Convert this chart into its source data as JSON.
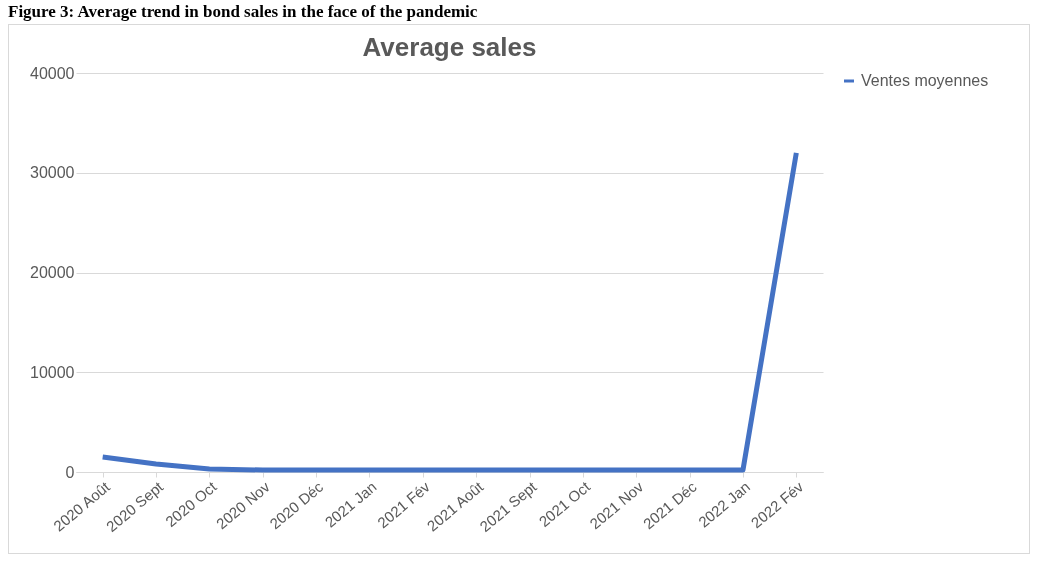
{
  "chart_data": {
    "type": "line",
    "title": "Average sales",
    "annotations": [
      "Figure 3: Average trend in bond sales in the face of the pandemic"
    ],
    "categories": [
      "2020 Août",
      "2020 Sept",
      "2020 Oct",
      "2020 Nov",
      "2020 Déc",
      "2021 Jan",
      "2021 Fév",
      "2021 Août",
      "2021 Sept",
      "2021 Oct",
      "2021 Nov",
      "2021 Déc",
      "2022 Jan",
      "2022 Fév"
    ],
    "series": [
      {
        "name": "Ventes moyennes",
        "color": "#4472c4",
        "values": [
          1500,
          800,
          300,
          200,
          200,
          200,
          200,
          200,
          200,
          200,
          200,
          200,
          200,
          32000
        ]
      }
    ],
    "ylim": [
      0,
      40000
    ],
    "yticks": [
      0,
      10000,
      20000,
      30000,
      40000
    ],
    "grid": "y",
    "legend": "right"
  }
}
